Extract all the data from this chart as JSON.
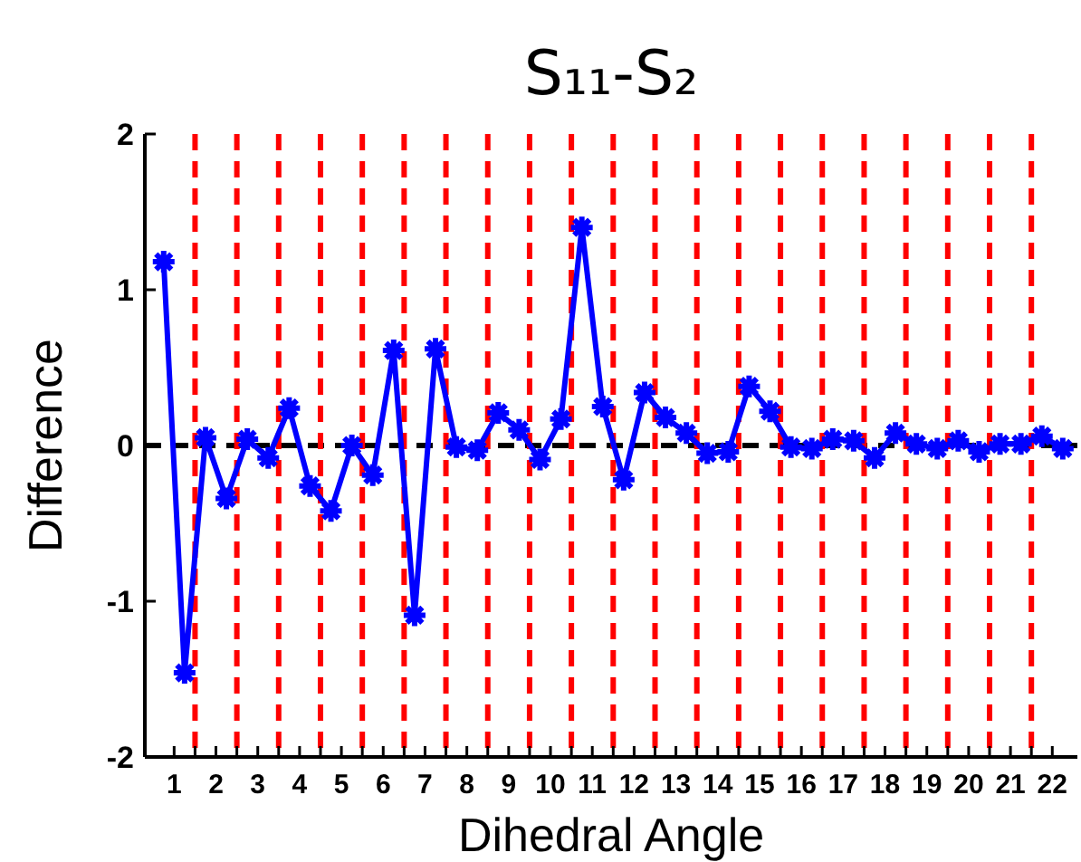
{
  "chart_data": {
    "type": "line",
    "title": "S₁₁-S₂",
    "xlabel": "Dihedral Angle",
    "ylabel": "Difference",
    "x": [
      0.75,
      1.25,
      1.75,
      2.25,
      2.75,
      3.25,
      3.75,
      4.25,
      4.75,
      5.25,
      5.75,
      6.25,
      6.75,
      7.25,
      7.75,
      8.25,
      8.75,
      9.25,
      9.75,
      10.25,
      10.75,
      11.25,
      11.75,
      12.25,
      12.75,
      13.25,
      13.75,
      14.25,
      14.75,
      15.25,
      15.75,
      16.25,
      16.75,
      17.25,
      17.75,
      18.25,
      18.75,
      19.25,
      19.75,
      20.25,
      20.75,
      21.25,
      21.75,
      22.25
    ],
    "series": [
      {
        "color": "#0000ff",
        "values": [
          1.18,
          -1.46,
          0.05,
          -0.34,
          0.04,
          -0.08,
          0.24,
          -0.26,
          -0.42,
          0.0,
          -0.19,
          0.61,
          -1.09,
          0.62,
          -0.01,
          -0.03,
          0.21,
          0.1,
          -0.09,
          0.17,
          1.4,
          0.25,
          -0.22,
          0.34,
          0.18,
          0.08,
          -0.05,
          -0.04,
          0.38,
          0.22,
          -0.01,
          -0.02,
          0.04,
          0.03,
          -0.08,
          0.08,
          0.01,
          -0.02,
          0.03,
          -0.04,
          0.01,
          0.01,
          0.06,
          -0.02
        ]
      }
    ],
    "marker": "cross",
    "line_style": "solid",
    "grid": false,
    "xlim": [
      0.3,
      22.6
    ],
    "ylim": [
      -2,
      2
    ],
    "yticks": [
      -2,
      -1,
      0,
      1,
      2
    ],
    "xticks": [
      1,
      {
        "value": 1.5,
        "label": null
      },
      2,
      {
        "value": 2.5,
        "label": null
      },
      3,
      {
        "value": 3.5,
        "label": null
      },
      4,
      {
        "value": 4.5,
        "label": null
      },
      5,
      {
        "value": 5.5,
        "label": null
      },
      6,
      {
        "value": 6.5,
        "label": null
      },
      7,
      {
        "value": 7.5,
        "label": null
      },
      8,
      {
        "value": 8.5,
        "label": null
      },
      9,
      {
        "value": 9.5,
        "label": null
      },
      10,
      {
        "value": 10.5,
        "label": null
      },
      11,
      {
        "value": 11.5,
        "label": null
      },
      12,
      {
        "value": 12.5,
        "label": null
      },
      13,
      {
        "value": 13.5,
        "label": null
      },
      14,
      {
        "value": 14.5,
        "label": null
      },
      15,
      {
        "value": 15.5,
        "label": null
      },
      16,
      {
        "value": 16.5,
        "label": null
      },
      17,
      {
        "value": 17.5,
        "label": null
      },
      18,
      {
        "value": 18.5,
        "label": null
      },
      19,
      {
        "value": 19.5,
        "label": null
      },
      20,
      {
        "value": 20.5,
        "label": null
      },
      21,
      {
        "value": 21.5,
        "label": null
      },
      22
    ],
    "ref_lines": [
      {
        "axis": "y",
        "value": 0,
        "color": "#000000",
        "line_style": "dashed"
      },
      {
        "axis": "x",
        "value": 1.5,
        "color": "#ff0000",
        "line_style": "dashed"
      },
      {
        "axis": "x",
        "value": 2.5,
        "color": "#ff0000",
        "line_style": "dashed"
      },
      {
        "axis": "x",
        "value": 3.5,
        "color": "#ff0000",
        "line_style": "dashed"
      },
      {
        "axis": "x",
        "value": 4.5,
        "color": "#ff0000",
        "line_style": "dashed"
      },
      {
        "axis": "x",
        "value": 5.5,
        "color": "#ff0000",
        "line_style": "dashed"
      },
      {
        "axis": "x",
        "value": 6.5,
        "color": "#ff0000",
        "line_style": "dashed"
      },
      {
        "axis": "x",
        "value": 7.5,
        "color": "#ff0000",
        "line_style": "dashed"
      },
      {
        "axis": "x",
        "value": 8.5,
        "color": "#ff0000",
        "line_style": "dashed"
      },
      {
        "axis": "x",
        "value": 9.5,
        "color": "#ff0000",
        "line_style": "dashed"
      },
      {
        "axis": "x",
        "value": 10.5,
        "color": "#ff0000",
        "line_style": "dashed"
      },
      {
        "axis": "x",
        "value": 11.5,
        "color": "#ff0000",
        "line_style": "dashed"
      },
      {
        "axis": "x",
        "value": 12.5,
        "color": "#ff0000",
        "line_style": "dashed"
      },
      {
        "axis": "x",
        "value": 13.5,
        "color": "#ff0000",
        "line_style": "dashed"
      },
      {
        "axis": "x",
        "value": 14.5,
        "color": "#ff0000",
        "line_style": "dashed"
      },
      {
        "axis": "x",
        "value": 15.5,
        "color": "#ff0000",
        "line_style": "dashed"
      },
      {
        "axis": "x",
        "value": 16.5,
        "color": "#ff0000",
        "line_style": "dashed"
      },
      {
        "axis": "x",
        "value": 17.5,
        "color": "#ff0000",
        "line_style": "dashed"
      },
      {
        "axis": "x",
        "value": 18.5,
        "color": "#ff0000",
        "line_style": "dashed"
      },
      {
        "axis": "x",
        "value": 19.5,
        "color": "#ff0000",
        "line_style": "dashed"
      },
      {
        "axis": "x",
        "value": 20.5,
        "color": "#ff0000",
        "line_style": "dashed"
      },
      {
        "axis": "x",
        "value": 21.5,
        "color": "#ff0000",
        "line_style": "dashed"
      }
    ]
  }
}
